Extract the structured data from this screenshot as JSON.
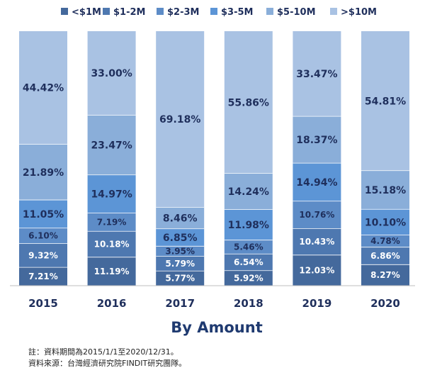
{
  "chart_data": {
    "type": "bar",
    "stacked": true,
    "percent": true,
    "title": "By Amount",
    "categories": [
      "2015",
      "2016",
      "2017",
      "2018",
      "2019",
      "2020"
    ],
    "series": [
      {
        "name": "<$1M",
        "color": "#44699c",
        "values": [
          7.21,
          11.19,
          5.77,
          5.92,
          12.03,
          8.27
        ]
      },
      {
        "name": "$1-2M",
        "color": "#4e78b0",
        "values": [
          9.32,
          10.18,
          5.79,
          6.54,
          10.43,
          6.86
        ]
      },
      {
        "name": "$2-3M",
        "color": "#5d8cc7",
        "values": [
          6.1,
          7.19,
          3.95,
          5.46,
          10.76,
          4.78
        ]
      },
      {
        "name": "$3-5M",
        "color": "#5c95d6",
        "values": [
          11.05,
          14.97,
          6.85,
          11.98,
          14.94,
          10.1
        ]
      },
      {
        "name": "$5-10M",
        "color": "#8aaed9",
        "values": [
          21.89,
          23.47,
          8.46,
          14.24,
          18.37,
          15.18
        ]
      },
      {
        "name": ">$10M",
        "color": "#a9c2e3",
        "values": [
          44.42,
          33.0,
          69.18,
          55.86,
          33.47,
          54.81
        ]
      }
    ],
    "labels": [
      [
        "7.21%",
        "9.32%",
        "6.10%",
        "11.05%",
        "21.89%",
        "44.42%"
      ],
      [
        "11.19%",
        "10.18%",
        "7.19%",
        "14.97%",
        "23.47%",
        "33.00%"
      ],
      [
        "5.77%",
        "5.79%",
        "3.95%",
        "6.85%",
        "8.46%",
        "69.18%"
      ],
      [
        "5.92%",
        "6.54%",
        "5.46%",
        "11.98%",
        "14.24%",
        "55.86%"
      ],
      [
        "12.03%",
        "10.43%",
        "10.76%",
        "14.94%",
        "18.37%",
        "33.47%"
      ],
      [
        "8.27%",
        "6.86%",
        "4.78%",
        "10.10%",
        "15.18%",
        "54.81%"
      ]
    ],
    "legend_position": "top",
    "ylim": [
      0,
      100
    ]
  },
  "notes": {
    "line1": "註：資料期間為2015/1/1至2020/12/31。",
    "line2": "資料來源：台灣經濟研究院FINDIT研究團隊。"
  }
}
